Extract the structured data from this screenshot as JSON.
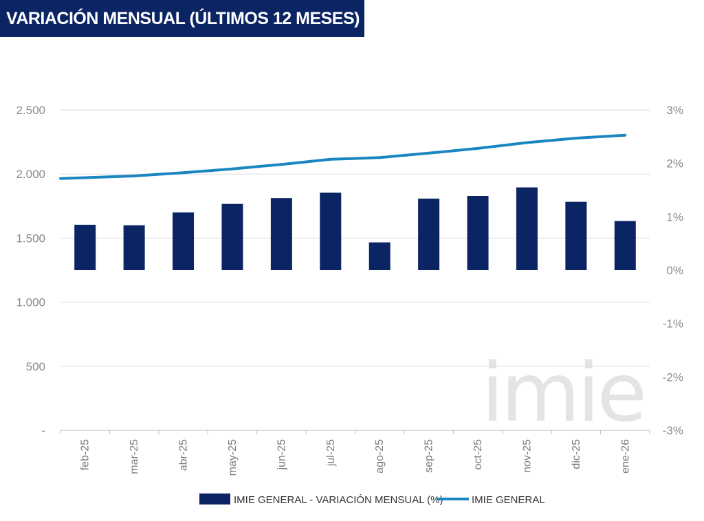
{
  "title": "VARIACIÓN MENSUAL (ÚLTIMOS 12 MESES)",
  "watermark": "imie",
  "colors": {
    "bar": "#0b2463",
    "line": "#1a86c1",
    "title_bg": "#0b2463",
    "grid": "#d9d9d9"
  },
  "chart_data": {
    "type": "bar+line",
    "categories": [
      "feb-25",
      "mar-25",
      "abr-25",
      "may-25",
      "jun-25",
      "jul-25",
      "ago-25",
      "sep-25",
      "oct-25",
      "nov-25",
      "dic-25",
      "ene-26"
    ],
    "series": [
      {
        "name": "IMIE GENERAL - VARIACIÓN MENSUAL (%)",
        "type": "bar",
        "axis": "right",
        "values": [
          0.85,
          0.84,
          1.08,
          1.24,
          1.35,
          1.45,
          0.52,
          1.34,
          1.39,
          1.55,
          1.28,
          0.92
        ]
      },
      {
        "name": "IMIE GENERAL",
        "type": "line",
        "axis": "left",
        "values": [
          1965,
          1985,
          2010,
          2040,
          2075,
          2115,
          2128,
          2163,
          2200,
          2245,
          2280,
          2303
        ]
      }
    ],
    "left_axis": {
      "min": 0,
      "max": 2500,
      "ticks": [
        "-",
        "500",
        "1.000",
        "1.500",
        "2.000",
        "2.500"
      ]
    },
    "right_axis": {
      "min": -3,
      "max": 3,
      "ticks": [
        "-3%",
        "-2%",
        "-1%",
        "0%",
        "1%",
        "2%",
        "3%"
      ]
    },
    "legend": [
      "IMIE GENERAL - VARIACIÓN MENSUAL (%)",
      "IMIE GENERAL"
    ],
    "legend_position": "bottom"
  }
}
